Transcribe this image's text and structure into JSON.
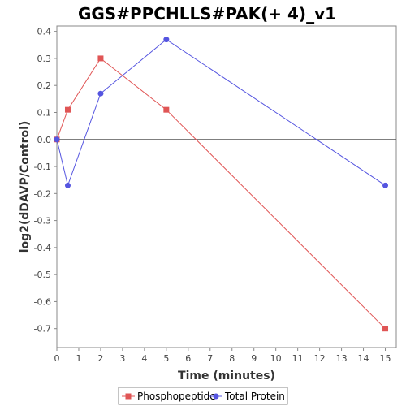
{
  "chart_data": {
    "type": "line",
    "title": "GGS#PPCHLLS#PAK(+ 4)_v1",
    "xlabel": "Time (minutes)",
    "ylabel": "log2(dDAVP/Control)",
    "xlim": [
      0,
      15.5
    ],
    "ylim": [
      -0.77,
      0.42
    ],
    "xticks": [
      0,
      1,
      2,
      3,
      4,
      5,
      6,
      7,
      8,
      9,
      10,
      11,
      12,
      13,
      14,
      15
    ],
    "yticks": [
      -0.7,
      -0.6,
      -0.5,
      -0.4,
      -0.3,
      -0.2,
      -0.1,
      0.0,
      0.1,
      0.2,
      0.3,
      0.4
    ],
    "ytick_labels": [
      "-0.7",
      "-0.6",
      "-0.5",
      "-0.4",
      "-0.3",
      "-0.2",
      "-0.1",
      "0.0",
      "0.1",
      "0.2",
      "0.3",
      "0.4"
    ],
    "grid": false,
    "reference_line_y": 0,
    "legend": "bottom",
    "series": [
      {
        "name": "Phosphopeptide",
        "color": "#e05555",
        "marker": "square",
        "x": [
          0,
          0.5,
          2,
          5,
          15
        ],
        "y": [
          0.0,
          0.11,
          0.3,
          0.11,
          -0.7
        ]
      },
      {
        "name": "Total Protein",
        "color": "#5555e0",
        "marker": "circle",
        "x": [
          0,
          0.5,
          2,
          5,
          15
        ],
        "y": [
          0.0,
          -0.17,
          0.17,
          0.37,
          -0.17
        ]
      }
    ]
  }
}
